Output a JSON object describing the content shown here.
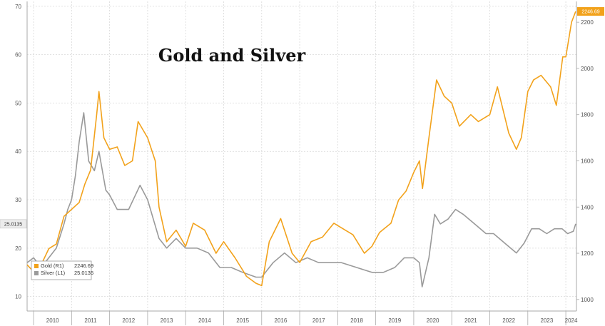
{
  "chart_data": {
    "type": "line",
    "title": "Gold and Silver",
    "xlabel": "",
    "x_tick_labels": [
      "2010",
      "2011",
      "2012",
      "2013",
      "2014",
      "2015",
      "2016",
      "2017",
      "2018",
      "2019",
      "2020",
      "2021",
      "2022",
      "2023",
      "2024"
    ],
    "xlim": [
      2009.83,
      2024.28
    ],
    "y_left": {
      "label": "",
      "ylim": [
        7,
        71
      ],
      "ticks": [
        10,
        20,
        30,
        40,
        50,
        60,
        70
      ]
    },
    "y_right": {
      "label": "",
      "ylim": [
        950,
        2290
      ],
      "ticks": [
        1000,
        1200,
        1400,
        1600,
        1800,
        2000,
        2200
      ]
    },
    "grid": true,
    "legend_position": "bottom-left",
    "series": [
      {
        "name": "Gold (R1)",
        "axis": "right",
        "color": "#f2a21b",
        "last_value": "2246.69",
        "x": [
          2009.83,
          2010.0,
          2010.2,
          2010.4,
          2010.6,
          2010.8,
          2011.0,
          2011.2,
          2011.35,
          2011.5,
          2011.66,
          2011.72,
          2011.85,
          2012.0,
          2012.2,
          2012.4,
          2012.6,
          2012.75,
          2013.0,
          2013.2,
          2013.3,
          2013.5,
          2013.75,
          2014.0,
          2014.2,
          2014.5,
          2014.8,
          2015.0,
          2015.3,
          2015.6,
          2015.85,
          2016.0,
          2016.2,
          2016.5,
          2016.8,
          2017.0,
          2017.3,
          2017.6,
          2017.9,
          2018.1,
          2018.4,
          2018.7,
          2018.9,
          2019.1,
          2019.4,
          2019.6,
          2019.8,
          2020.0,
          2020.15,
          2020.23,
          2020.4,
          2020.6,
          2020.8,
          2021.0,
          2021.2,
          2021.5,
          2021.7,
          2022.0,
          2022.2,
          2022.5,
          2022.7,
          2022.83,
          2023.0,
          2023.15,
          2023.35,
          2023.6,
          2023.75,
          2023.92,
          2024.0,
          2024.15,
          2024.26
        ],
        "y": [
          1150,
          1120,
          1150,
          1220,
          1240,
          1360,
          1390,
          1420,
          1500,
          1560,
          1800,
          1900,
          1700,
          1650,
          1660,
          1580,
          1600,
          1770,
          1700,
          1600,
          1400,
          1250,
          1300,
          1230,
          1330,
          1300,
          1200,
          1250,
          1180,
          1100,
          1070,
          1060,
          1250,
          1350,
          1200,
          1160,
          1250,
          1270,
          1330,
          1310,
          1280,
          1200,
          1230,
          1290,
          1330,
          1430,
          1470,
          1550,
          1600,
          1480,
          1700,
          1950,
          1880,
          1850,
          1750,
          1800,
          1770,
          1800,
          1920,
          1720,
          1650,
          1700,
          1900,
          1950,
          1970,
          1920,
          1840,
          2050,
          2050,
          2200,
          2246.69
        ]
      },
      {
        "name": "Silver (L1)",
        "axis": "left",
        "color": "#9a9a9a",
        "last_value": "25.0135",
        "x": [
          2009.83,
          2010.0,
          2010.2,
          2010.4,
          2010.6,
          2010.8,
          2010.9,
          2011.0,
          2011.1,
          2011.2,
          2011.32,
          2011.45,
          2011.6,
          2011.72,
          2011.9,
          2012.0,
          2012.2,
          2012.5,
          2012.8,
          2013.0,
          2013.3,
          2013.5,
          2013.75,
          2014.0,
          2014.3,
          2014.6,
          2014.9,
          2015.2,
          2015.5,
          2015.85,
          2016.0,
          2016.3,
          2016.6,
          2016.9,
          2017.2,
          2017.5,
          2017.8,
          2018.1,
          2018.5,
          2018.9,
          2019.2,
          2019.5,
          2019.75,
          2020.0,
          2020.15,
          2020.22,
          2020.4,
          2020.55,
          2020.7,
          2020.9,
          2021.1,
          2021.3,
          2021.6,
          2021.9,
          2022.1,
          2022.4,
          2022.7,
          2022.9,
          2023.1,
          2023.3,
          2023.5,
          2023.7,
          2023.9,
          2024.05,
          2024.2,
          2024.26
        ],
        "y": [
          17,
          18,
          16,
          18,
          20,
          25,
          28,
          30,
          35,
          42,
          48,
          38,
          36,
          40,
          32,
          31,
          28,
          28,
          33,
          30,
          22,
          20,
          22,
          20,
          20,
          19,
          16,
          16,
          15,
          14,
          14,
          17,
          19,
          17,
          18,
          17,
          17,
          17,
          16,
          15,
          15,
          16,
          18,
          18,
          17,
          12,
          18,
          27,
          25,
          26,
          28,
          27,
          25,
          23,
          23,
          21,
          19,
          21,
          24,
          24,
          23,
          24,
          24,
          23,
          23.5,
          25.0135
        ]
      }
    ],
    "legend": [
      {
        "label": "Gold (R1)",
        "value": "2246.69"
      },
      {
        "label": "Silver (L1)",
        "value": "25.0135"
      }
    ]
  },
  "colors": {
    "gold": "#f2a21b",
    "silver": "#9a9a9a",
    "grid": "#d8d8d8",
    "axis": "#aaaaaa"
  }
}
